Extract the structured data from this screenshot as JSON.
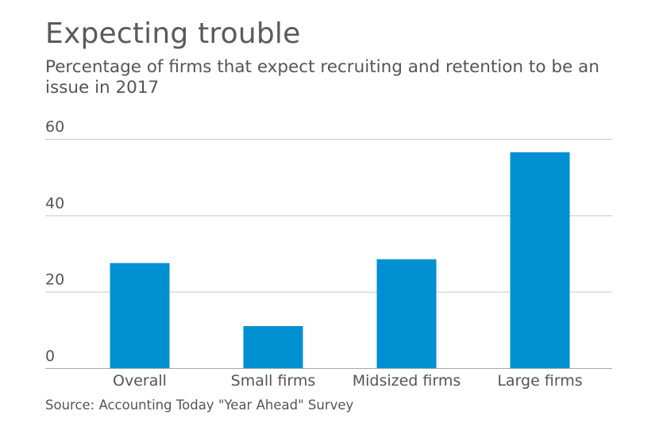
{
  "chart_data": {
    "type": "bar",
    "title": "Expecting trouble",
    "subtitle": "Percentage of firms that expect recruiting and retention to be an issue in 2017",
    "categories": [
      "Overall",
      "Small firms",
      "Midsized firms",
      "Large firms"
    ],
    "values": [
      27.5,
      11,
      28.5,
      56.5
    ],
    "ylim": [
      0,
      60
    ],
    "yticks": [
      0,
      20,
      40,
      60
    ],
    "xlabel": "",
    "ylabel": "",
    "grid": true,
    "legend": "none",
    "source": "Source: Accounting Today \"Year Ahead\" Survey",
    "colors": {
      "bar": "#0090d2",
      "grid": "#c8c8c8",
      "axis": "#aaaaaa",
      "text": "#555555"
    }
  }
}
